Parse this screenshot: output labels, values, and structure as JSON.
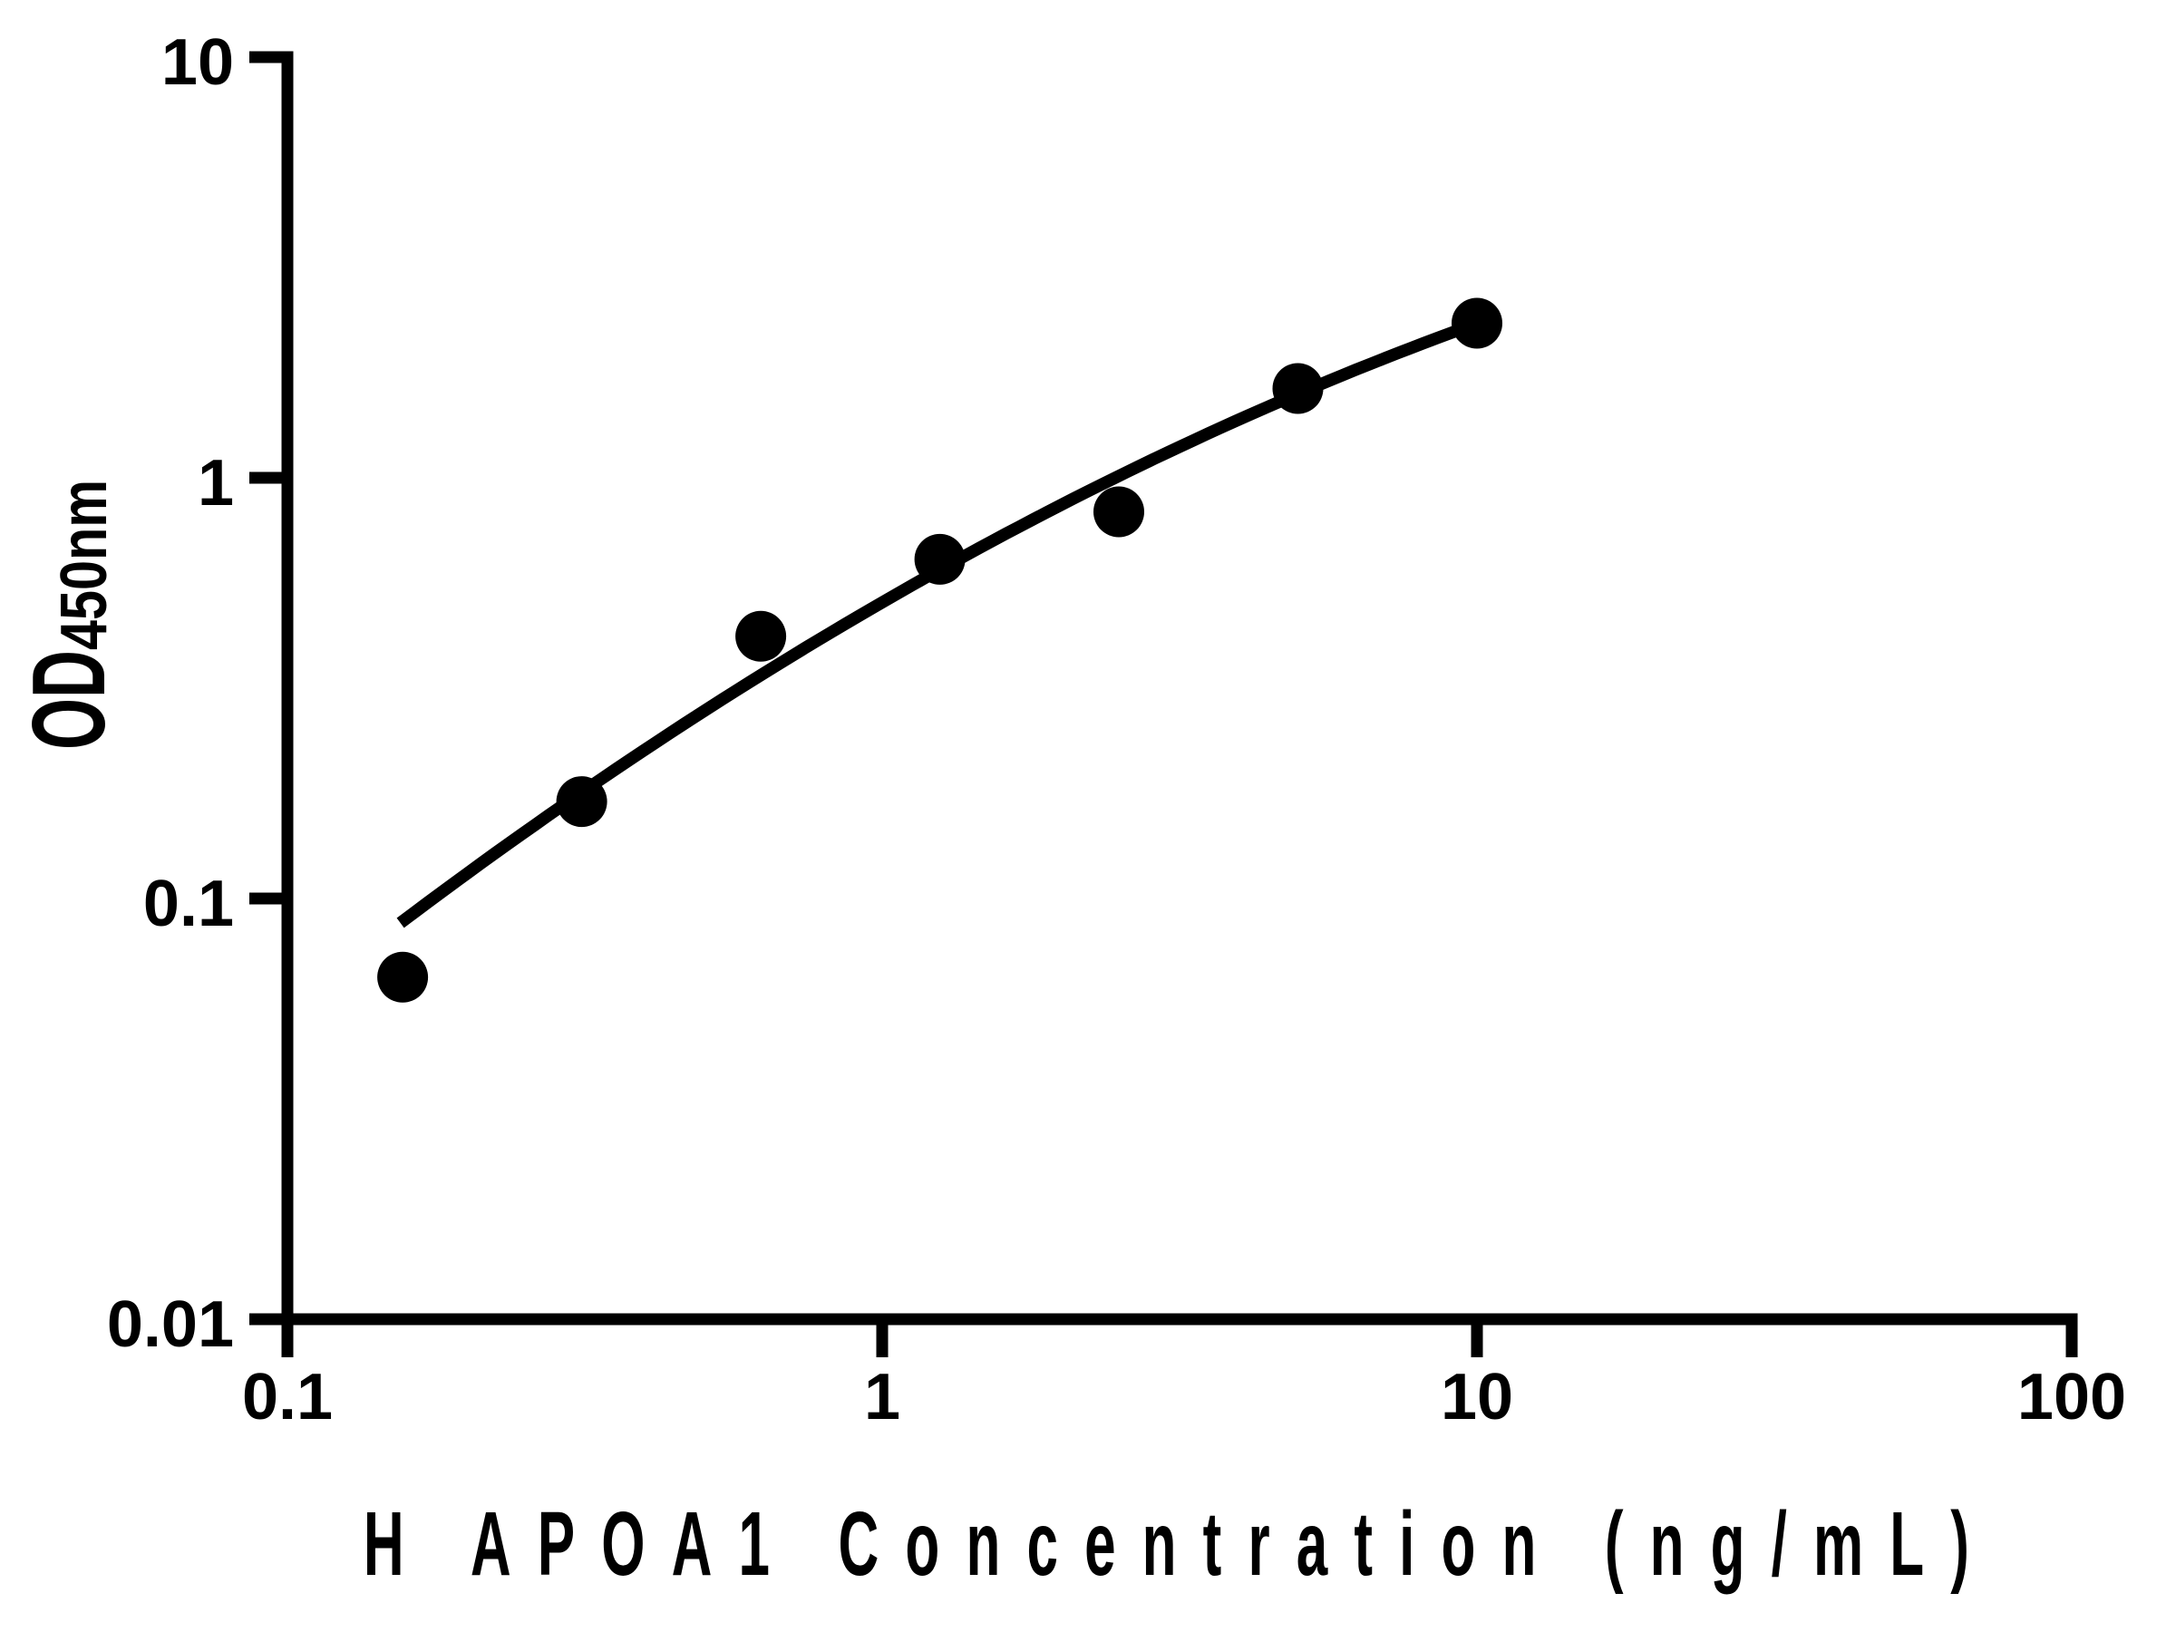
{
  "page": {
    "background_color": "#ffffff",
    "foreground_color": "#000000"
  },
  "chart_data": {
    "type": "scatter",
    "title": "",
    "xlabel": "H APOA1 Concentration (ng/mL)",
    "ylabel_main": "OD",
    "ylabel_sub": "450nm",
    "x_scale": "log",
    "y_scale": "log",
    "xlim": [
      0.1,
      100
    ],
    "ylim": [
      0.01,
      10
    ],
    "grid": false,
    "legend": false,
    "marker": "filled-circle",
    "marker_color": "#000000",
    "curve_color": "#000000",
    "x_ticks": [
      {
        "value": 0.1,
        "label": "0.1"
      },
      {
        "value": 1,
        "label": "1"
      },
      {
        "value": 10,
        "label": "10"
      },
      {
        "value": 100,
        "label": "100"
      }
    ],
    "y_ticks": [
      {
        "value": 10,
        "label": "10"
      },
      {
        "value": 1,
        "label": "1"
      },
      {
        "value": 0.1,
        "label": "0.1"
      },
      {
        "value": 0.01,
        "label": "0.01"
      }
    ],
    "series": [
      {
        "name": "standard-points",
        "points": [
          {
            "x": 0.15625,
            "y": 0.065
          },
          {
            "x": 0.3125,
            "y": 0.17
          },
          {
            "x": 0.625,
            "y": 0.42
          },
          {
            "x": 1.25,
            "y": 0.64
          },
          {
            "x": 2.5,
            "y": 0.83
          },
          {
            "x": 5,
            "y": 1.63
          },
          {
            "x": 10,
            "y": 2.33
          }
        ]
      }
    ],
    "fit_curve": {
      "name": "standard-fit-curve",
      "description": "smooth fit through points, log10(OD) = a + b*u + c*u^2 with u = log10(conc)",
      "loglog_quadratic_coeffs": [
        -0.2961,
        0.8164,
        -0.1533
      ],
      "log10_x_range": [
        -0.81,
        1.0
      ]
    }
  }
}
